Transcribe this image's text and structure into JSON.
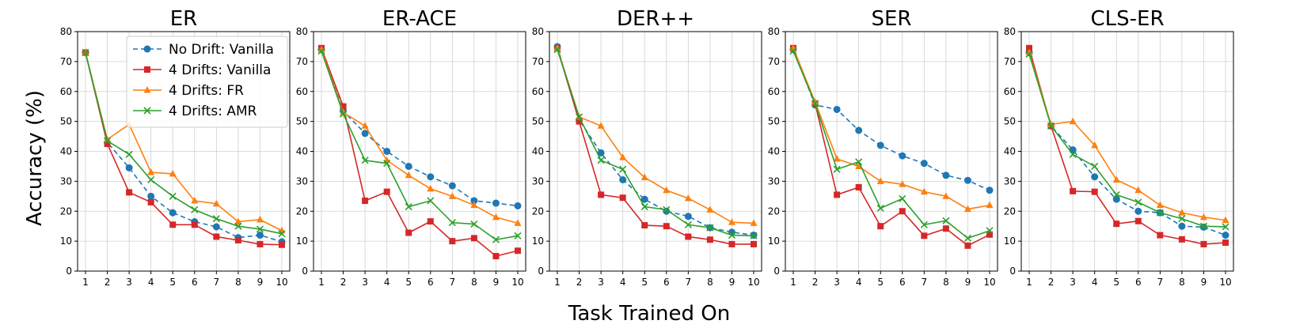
{
  "chart_data": {
    "type": "line",
    "xlabel": "Task Trained On",
    "ylabel": "Accuracy (%)",
    "x": [
      1,
      2,
      3,
      4,
      5,
      6,
      7,
      8,
      9,
      10
    ],
    "ylim": [
      0,
      80
    ],
    "yticks": [
      0,
      10,
      20,
      30,
      40,
      50,
      60,
      70,
      80
    ],
    "grid": true,
    "legend_location": "top-right of first panel",
    "series_styles": [
      {
        "name": "No Drift: Vanilla",
        "color": "#1f77b4",
        "dash": "dashed",
        "marker": "circle"
      },
      {
        "name": "4 Drifts: Vanilla",
        "color": "#d62728",
        "dash": "solid",
        "marker": "square"
      },
      {
        "name": "4 Drifts: FR",
        "color": "#ff7f0e",
        "dash": "solid",
        "marker": "triangle"
      },
      {
        "name": "4 Drifts: AMR",
        "color": "#2ca02c",
        "dash": "solid",
        "marker": "x"
      }
    ],
    "panels": [
      {
        "title": "ER",
        "series": [
          {
            "name": "No Drift: Vanilla",
            "values": [
              73,
              43,
              34.5,
              25,
              19.5,
              16.5,
              14.8,
              11.2,
              12,
              9.8
            ]
          },
          {
            "name": "4 Drifts: Vanilla",
            "values": [
              73,
              42.5,
              26.3,
              23,
              15.5,
              15.5,
              11.5,
              10.3,
              9,
              8.8
            ]
          },
          {
            "name": "4 Drifts: FR",
            "values": [
              73,
              44,
              49,
              33,
              32.5,
              23.5,
              22.5,
              16.5,
              17.2,
              13.5
            ]
          },
          {
            "name": "4 Drifts: AMR",
            "values": [
              73,
              43.5,
              39,
              30.5,
              25,
              20.5,
              17.5,
              15,
              14,
              12.5
            ]
          }
        ]
      },
      {
        "title": "ER-ACE",
        "series": [
          {
            "name": "No Drift: Vanilla",
            "values": [
              74,
              53.5,
              46,
              40,
              35,
              31.5,
              28.5,
              23.5,
              22.7,
              21.8
            ]
          },
          {
            "name": "4 Drifts: Vanilla",
            "values": [
              74.5,
              55,
              23.5,
              26.5,
              12.8,
              16.6,
              10,
              11,
              5,
              6.8
            ]
          },
          {
            "name": "4 Drifts: FR",
            "values": [
              74,
              53,
              48.5,
              37,
              32,
              27.5,
              25,
              22,
              18,
              16
            ]
          },
          {
            "name": "4 Drifts: AMR",
            "values": [
              73.5,
              52.5,
              37,
              36,
              21.5,
              23.5,
              16.2,
              15.7,
              10.5,
              11.8
            ]
          }
        ]
      },
      {
        "title": "DER++",
        "series": [
          {
            "name": "No Drift: Vanilla",
            "values": [
              75,
              50.5,
              39.5,
              30.5,
              24,
              20,
              18.3,
              14.5,
              13,
              12
            ]
          },
          {
            "name": "4 Drifts: Vanilla",
            "values": [
              74.5,
              50,
              25.5,
              24.5,
              15.3,
              15,
              11.5,
              10.5,
              9,
              9
            ]
          },
          {
            "name": "4 Drifts: FR",
            "values": [
              74.5,
              51.5,
              48.5,
              38,
              31.3,
              27,
              24.3,
              20.5,
              16.3,
              16
            ]
          },
          {
            "name": "4 Drifts: AMR",
            "values": [
              74,
              51.5,
              37,
              34,
              21.5,
              20.5,
              15.5,
              14.5,
              12,
              11.8
            ]
          }
        ]
      },
      {
        "title": "SER",
        "series": [
          {
            "name": "No Drift: Vanilla",
            "values": [
              74,
              55.5,
              54,
              47,
              42,
              38.5,
              36,
              32,
              30.3,
              27
            ]
          },
          {
            "name": "4 Drifts: Vanilla",
            "values": [
              74.5,
              56,
              25.5,
              28,
              15,
              20,
              11.8,
              14.2,
              8.5,
              12.2
            ]
          },
          {
            "name": "4 Drifts: FR",
            "values": [
              74.5,
              56.5,
              37.5,
              35,
              30,
              29,
              26.5,
              25,
              20.7,
              22
            ]
          },
          {
            "name": "4 Drifts: AMR",
            "values": [
              73.5,
              56,
              34,
              36.5,
              21,
              24.2,
              15.5,
              16.8,
              11,
              13.5
            ]
          }
        ]
      },
      {
        "title": "CLS-ER",
        "series": [
          {
            "name": "No Drift: Vanilla",
            "values": [
              73,
              48.5,
              40.5,
              31.5,
              24,
              20,
              19.5,
              15,
              14.7,
              12
            ]
          },
          {
            "name": "4 Drifts: Vanilla",
            "values": [
              74.5,
              48.5,
              26.7,
              26.5,
              15.8,
              16.7,
              12,
              10.6,
              9,
              9.5
            ]
          },
          {
            "name": "4 Drifts: FR",
            "values": [
              73,
              49,
              50,
              42,
              30.5,
              27,
              22,
              19.5,
              18,
              17
            ]
          },
          {
            "name": "4 Drifts: AMR",
            "values": [
              72.5,
              48.5,
              39,
              35,
              25.5,
              23,
              19.5,
              17.5,
              15,
              14.8
            ]
          }
        ]
      }
    ]
  }
}
